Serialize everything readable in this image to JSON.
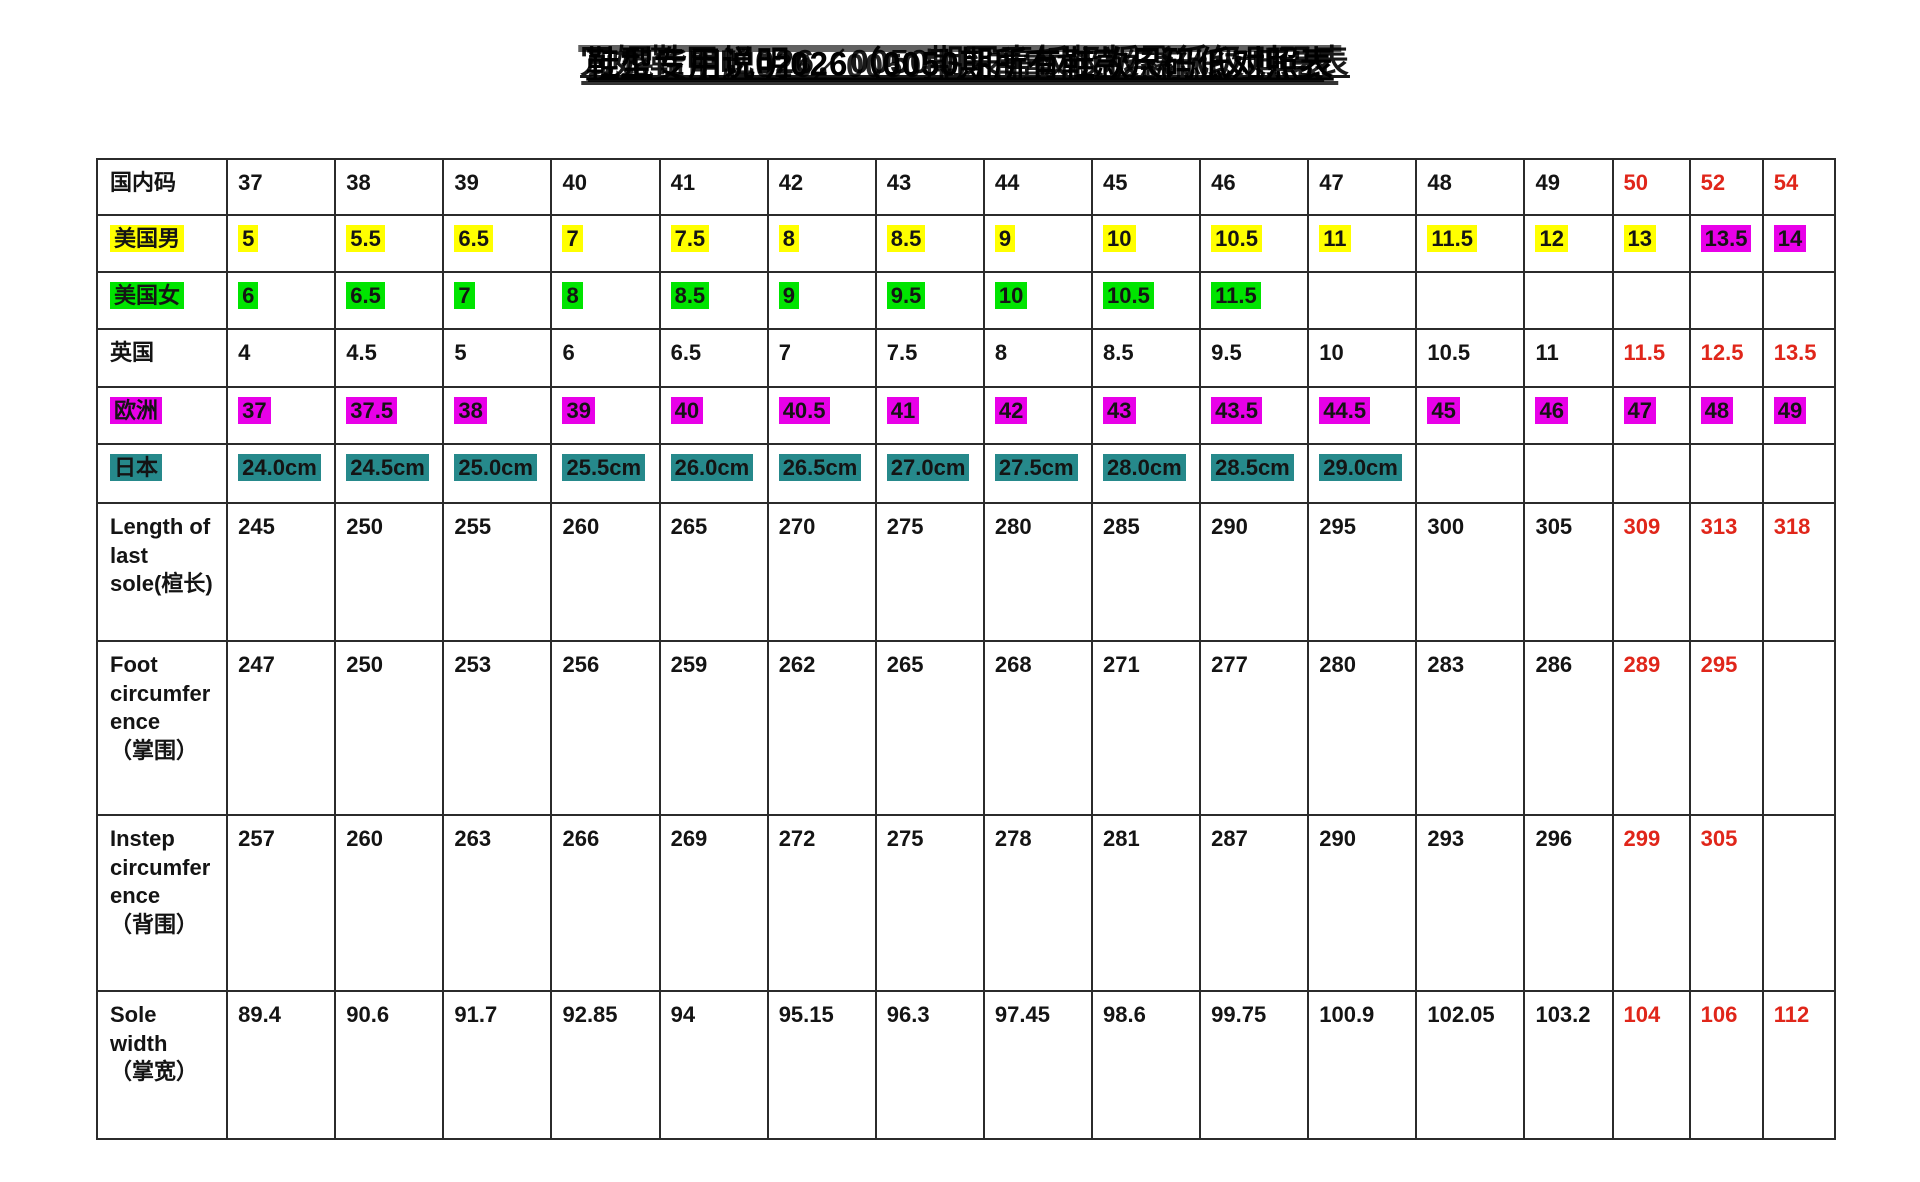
{
  "title": {
    "legibility": "overstruck-illegible",
    "visible_fragments": [
      "026",
      "0050",
      "对照表"
    ],
    "garble_layers": [
      "鞋型专用说明026（0050期所有鞋款尺码低对照表",
      "冗妮鞋甲屺026．0050期冞軎板㠷粄飝彽级则码表",
      "现珉货明牌026／0050排丹有重杺已经标低对照表"
    ]
  },
  "colors": {
    "highlight_yellow": "#ffff00",
    "highlight_green": "#00e400",
    "highlight_magenta": "#e800e8",
    "highlight_teal": "#26898b",
    "warning_red_text": "#e0261a",
    "table_border": "#2b2b2b"
  },
  "table": {
    "rows": [
      {
        "name": "domestic-code",
        "label": "国内码",
        "label_hl": null,
        "cells": [
          {
            "t": "37"
          },
          {
            "t": "38"
          },
          {
            "t": "39"
          },
          {
            "t": "40"
          },
          {
            "t": "41"
          },
          {
            "t": "42"
          },
          {
            "t": "43"
          },
          {
            "t": "44"
          },
          {
            "t": "45"
          },
          {
            "t": "46"
          },
          {
            "t": "47"
          },
          {
            "t": "48"
          },
          {
            "t": "49"
          },
          {
            "t": "50",
            "c": "red"
          },
          {
            "t": "52",
            "c": "red"
          },
          {
            "t": "54",
            "c": "red"
          }
        ]
      },
      {
        "name": "us-men",
        "label": "美国男",
        "label_hl": "yellow",
        "cells": [
          {
            "t": "5",
            "hl": "yellow"
          },
          {
            "t": "5.5",
            "hl": "yellow"
          },
          {
            "t": "6.5",
            "hl": "yellow"
          },
          {
            "t": "7",
            "hl": "yellow"
          },
          {
            "t": "7.5",
            "hl": "yellow"
          },
          {
            "t": "8",
            "hl": "yellow"
          },
          {
            "t": "8.5",
            "hl": "yellow"
          },
          {
            "t": "9",
            "hl": "yellow"
          },
          {
            "t": "10",
            "hl": "yellow"
          },
          {
            "t": "10.5",
            "hl": "yellow"
          },
          {
            "t": "11",
            "hl": "yellow"
          },
          {
            "t": "11.5",
            "hl": "yellow"
          },
          {
            "t": "12",
            "hl": "yellow"
          },
          {
            "t": "13",
            "hl": "yellow"
          },
          {
            "t": "13.5",
            "hl": "magenta"
          },
          {
            "t": "14",
            "hl": "magenta"
          }
        ]
      },
      {
        "name": "us-women",
        "label": "美国女",
        "label_hl": "green",
        "cells": [
          {
            "t": "6",
            "hl": "green"
          },
          {
            "t": "6.5",
            "hl": "green"
          },
          {
            "t": "7",
            "hl": "green"
          },
          {
            "t": "8",
            "hl": "green"
          },
          {
            "t": "8.5",
            "hl": "green"
          },
          {
            "t": "9",
            "hl": "green"
          },
          {
            "t": "9.5",
            "hl": "green"
          },
          {
            "t": "10",
            "hl": "green"
          },
          {
            "t": "10.5",
            "hl": "green"
          },
          {
            "t": "11.5",
            "hl": "green"
          },
          {
            "t": ""
          },
          {
            "t": ""
          },
          {
            "t": ""
          },
          {
            "t": ""
          },
          {
            "t": ""
          },
          {
            "t": ""
          }
        ]
      },
      {
        "name": "uk",
        "label": "英国",
        "label_hl": null,
        "cells": [
          {
            "t": "4"
          },
          {
            "t": "4.5"
          },
          {
            "t": "5"
          },
          {
            "t": "6"
          },
          {
            "t": "6.5"
          },
          {
            "t": "7"
          },
          {
            "t": "7.5"
          },
          {
            "t": "8"
          },
          {
            "t": "8.5"
          },
          {
            "t": "9.5"
          },
          {
            "t": "10"
          },
          {
            "t": "10.5"
          },
          {
            "t": "11"
          },
          {
            "t": "11.5",
            "c": "red"
          },
          {
            "t": "12.5",
            "c": "red"
          },
          {
            "t": "13.5",
            "c": "red"
          }
        ]
      },
      {
        "name": "europe",
        "label": "欧洲",
        "label_hl": "magenta",
        "cells": [
          {
            "t": "37",
            "hl": "magenta"
          },
          {
            "t": "37.5",
            "hl": "magenta"
          },
          {
            "t": "38",
            "hl": "magenta"
          },
          {
            "t": "39",
            "hl": "magenta"
          },
          {
            "t": "40",
            "hl": "magenta"
          },
          {
            "t": "40.5",
            "hl": "magenta"
          },
          {
            "t": "41",
            "hl": "magenta"
          },
          {
            "t": "42",
            "hl": "magenta"
          },
          {
            "t": "43",
            "hl": "magenta"
          },
          {
            "t": "43.5",
            "hl": "magenta"
          },
          {
            "t": "44.5",
            "hl": "magenta"
          },
          {
            "t": "45",
            "hl": "magenta"
          },
          {
            "t": "46",
            "hl": "magenta"
          },
          {
            "t": "47",
            "hl": "magenta"
          },
          {
            "t": "48",
            "hl": "magenta"
          },
          {
            "t": "49",
            "hl": "magenta"
          }
        ]
      },
      {
        "name": "japan",
        "label": "日本",
        "label_hl": "teal",
        "cells": [
          {
            "t": "24.0cm",
            "hl": "teal"
          },
          {
            "t": "24.5cm",
            "hl": "teal"
          },
          {
            "t": "25.0cm",
            "hl": "teal"
          },
          {
            "t": "25.5cm",
            "hl": "teal"
          },
          {
            "t": "26.0cm",
            "hl": "teal"
          },
          {
            "t": "26.5cm",
            "hl": "teal"
          },
          {
            "t": "27.0cm",
            "hl": "teal"
          },
          {
            "t": "27.5cm",
            "hl": "teal"
          },
          {
            "t": "28.0cm",
            "hl": "teal"
          },
          {
            "t": "28.5cm",
            "hl": "teal"
          },
          {
            "t": "29.0cm",
            "hl": "teal"
          },
          {
            "t": ""
          },
          {
            "t": ""
          },
          {
            "t": ""
          },
          {
            "t": ""
          },
          {
            "t": ""
          }
        ]
      },
      {
        "name": "last-sole-length",
        "label": "Length of\nlast\nsole(楦长)",
        "label_hl": null,
        "cells": [
          {
            "t": "245"
          },
          {
            "t": "250"
          },
          {
            "t": "255"
          },
          {
            "t": "260"
          },
          {
            "t": "265"
          },
          {
            "t": "270"
          },
          {
            "t": "275"
          },
          {
            "t": "280"
          },
          {
            "t": "285"
          },
          {
            "t": "290"
          },
          {
            "t": "295"
          },
          {
            "t": "300"
          },
          {
            "t": "305"
          },
          {
            "t": "309",
            "c": "red"
          },
          {
            "t": "313",
            "c": "red"
          },
          {
            "t": "318",
            "c": "red"
          }
        ]
      },
      {
        "name": "foot-circumference",
        "label": "Foot\ncircumfer\nence\n（掌围）",
        "label_hl": null,
        "cells": [
          {
            "t": "247"
          },
          {
            "t": "250"
          },
          {
            "t": "253"
          },
          {
            "t": "256"
          },
          {
            "t": "259"
          },
          {
            "t": "262"
          },
          {
            "t": "265"
          },
          {
            "t": "268"
          },
          {
            "t": "271"
          },
          {
            "t": "277"
          },
          {
            "t": "280"
          },
          {
            "t": "283"
          },
          {
            "t": "286"
          },
          {
            "t": "289",
            "c": "red"
          },
          {
            "t": "295",
            "c": "red"
          },
          {
            "t": ""
          }
        ]
      },
      {
        "name": "instep-circumference",
        "label": "Instep\ncircumfer\nence\n（背围）",
        "label_hl": null,
        "cells": [
          {
            "t": "257"
          },
          {
            "t": "260"
          },
          {
            "t": "263"
          },
          {
            "t": "266"
          },
          {
            "t": "269"
          },
          {
            "t": "272"
          },
          {
            "t": "275"
          },
          {
            "t": "278"
          },
          {
            "t": "281"
          },
          {
            "t": "287"
          },
          {
            "t": "290"
          },
          {
            "t": "293"
          },
          {
            "t": "296"
          },
          {
            "t": "299",
            "c": "red"
          },
          {
            "t": "305",
            "c": "red"
          },
          {
            "t": ""
          }
        ]
      },
      {
        "name": "sole-width",
        "label": "Sole\nwidth\n（掌宽）",
        "label_hl": null,
        "cells": [
          {
            "t": "89.4"
          },
          {
            "t": "90.6"
          },
          {
            "t": "91.7"
          },
          {
            "t": "92.85"
          },
          {
            "t": "94"
          },
          {
            "t": "95.15"
          },
          {
            "t": "96.3"
          },
          {
            "t": "97.45"
          },
          {
            "t": "98.6"
          },
          {
            "t": "99.75"
          },
          {
            "t": "100.9"
          },
          {
            "t": "102.05"
          },
          {
            "t": "103.2"
          },
          {
            "t": "104",
            "c": "red"
          },
          {
            "t": "106",
            "c": "red"
          },
          {
            "t": "112",
            "c": "red"
          }
        ]
      }
    ]
  }
}
